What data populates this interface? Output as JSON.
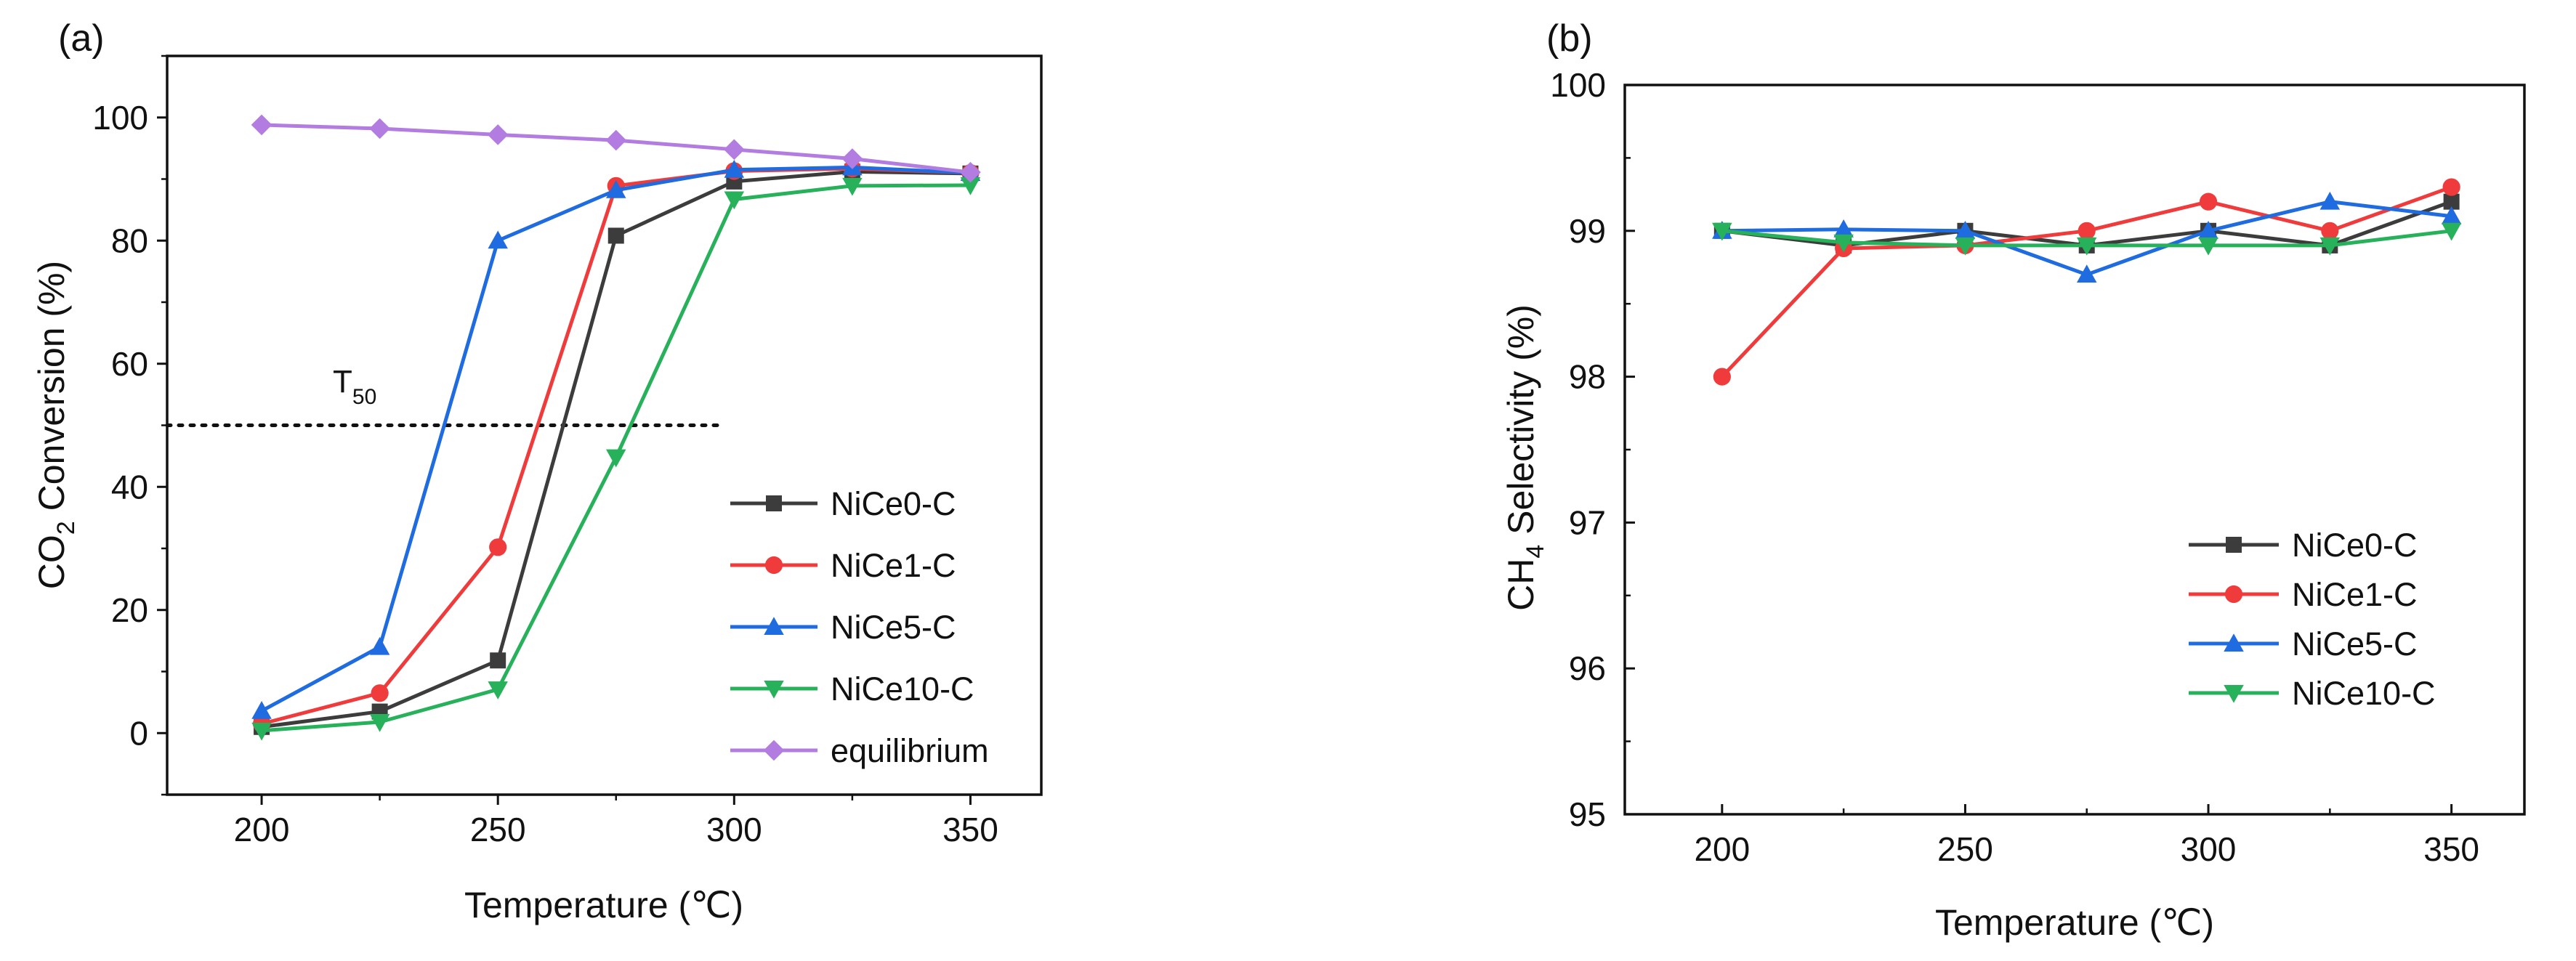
{
  "chart_data": [
    {
      "type": "line",
      "panel_label": "(a)",
      "title": "",
      "xlabel": "Temperature (℃)",
      "ylabel": {
        "pre": "CO",
        "sub": "2",
        "post": " Conversion (%)"
      },
      "xlim": [
        180,
        365
      ],
      "ylim": [
        -10,
        110
      ],
      "xticks": [
        200,
        250,
        300,
        350
      ],
      "yticks": [
        0,
        20,
        40,
        60,
        80,
        100
      ],
      "x": [
        200,
        225,
        250,
        275,
        300,
        325,
        350
      ],
      "series": [
        {
          "name": "NiCe0-C",
          "color": "#3c3c3c",
          "marker": "square",
          "values": [
            1.0,
            3.5,
            11.8,
            80.8,
            89.6,
            91.2,
            90.9
          ]
        },
        {
          "name": "NiCe1-C",
          "color": "#ef3b3b",
          "marker": "circle",
          "values": [
            1.5,
            6.5,
            30.2,
            88.9,
            91.3,
            91.7,
            91.0
          ]
        },
        {
          "name": "NiCe5-C",
          "color": "#1f6be0",
          "marker": "triangle-up",
          "values": [
            3.6,
            14.0,
            80.0,
            88.2,
            91.5,
            91.9,
            91.0
          ]
        },
        {
          "name": "NiCe10-C",
          "color": "#26b15a",
          "marker": "triangle-down",
          "values": [
            0.4,
            1.8,
            7.1,
            44.8,
            86.7,
            88.9,
            89.0
          ]
        },
        {
          "name": "equilibrium",
          "color": "#b27ce0",
          "marker": "diamond",
          "values": [
            98.8,
            98.2,
            97.2,
            96.3,
            94.8,
            93.3,
            91.1
          ]
        }
      ],
      "reference_line": {
        "label": "T",
        "label_sub": "50",
        "y": 50,
        "x_start": 180,
        "x_end": 298,
        "style": "dotted"
      },
      "legend_position": "bottom-right"
    },
    {
      "type": "line",
      "panel_label": "(b)",
      "title": "",
      "xlabel": "Temperature (℃)",
      "ylabel": {
        "pre": "CH",
        "sub": "4",
        "post": " Selectivity (%)"
      },
      "xlim": [
        180,
        365
      ],
      "ylim": [
        95,
        100
      ],
      "xticks": [
        200,
        250,
        300,
        350
      ],
      "yticks": [
        95,
        96,
        97,
        98,
        99,
        100
      ],
      "x": [
        200,
        225,
        250,
        275,
        300,
        325,
        350
      ],
      "series": [
        {
          "name": "NiCe0-C",
          "color": "#3c3c3c",
          "marker": "square",
          "values": [
            99.0,
            98.9,
            99.0,
            98.9,
            99.0,
            98.9,
            99.2
          ]
        },
        {
          "name": "NiCe1-C",
          "color": "#ef3b3b",
          "marker": "circle",
          "values": [
            98.0,
            98.88,
            98.9,
            99.0,
            99.2,
            99.0,
            99.3
          ]
        },
        {
          "name": "NiCe5-C",
          "color": "#1f6be0",
          "marker": "triangle-up",
          "values": [
            99.0,
            99.01,
            99.0,
            98.7,
            99.0,
            99.2,
            99.1
          ]
        },
        {
          "name": "NiCe10-C",
          "color": "#26b15a",
          "marker": "triangle-down",
          "values": [
            99.0,
            98.92,
            98.9,
            98.9,
            98.9,
            98.9,
            99.0
          ]
        }
      ],
      "legend_position": "bottom-right"
    }
  ]
}
